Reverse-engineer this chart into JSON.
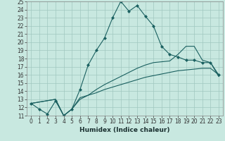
{
  "title": "",
  "xlabel": "Humidex (Indice chaleur)",
  "bg_color": "#c8e8e0",
  "line_color": "#1a6060",
  "grid_color": "#a0c8c0",
  "xlim": [
    -0.5,
    23.5
  ],
  "ylim": [
    11,
    25
  ],
  "xticks": [
    0,
    1,
    2,
    3,
    4,
    5,
    6,
    7,
    8,
    9,
    10,
    11,
    12,
    13,
    14,
    15,
    16,
    17,
    18,
    19,
    20,
    21,
    22,
    23
  ],
  "yticks": [
    11,
    12,
    13,
    14,
    15,
    16,
    17,
    18,
    19,
    20,
    21,
    22,
    23,
    24,
    25
  ],
  "line1_x": [
    0,
    1,
    2,
    3,
    4,
    5,
    6,
    7,
    8,
    9,
    10,
    11,
    12,
    13,
    14,
    15,
    16,
    17,
    18,
    19,
    20,
    21,
    22,
    23
  ],
  "line1_y": [
    12.5,
    11.8,
    11.2,
    12.8,
    11.0,
    11.8,
    14.2,
    17.2,
    19.0,
    20.5,
    23.0,
    25.0,
    23.8,
    24.5,
    23.2,
    22.0,
    19.5,
    18.5,
    18.2,
    17.8,
    17.8,
    17.5,
    17.5,
    16.0
  ],
  "line2_x": [
    0,
    3,
    4,
    5,
    6,
    7,
    8,
    9,
    10,
    11,
    12,
    13,
    14,
    15,
    16,
    17,
    18,
    19,
    20,
    21,
    22,
    23
  ],
  "line2_y": [
    12.5,
    13.0,
    11.0,
    11.8,
    13.0,
    13.5,
    13.8,
    14.2,
    14.5,
    14.8,
    15.1,
    15.4,
    15.7,
    15.9,
    16.1,
    16.3,
    16.5,
    16.6,
    16.7,
    16.8,
    16.8,
    16.0
  ],
  "line3_x": [
    0,
    3,
    4,
    5,
    6,
    7,
    8,
    9,
    10,
    11,
    12,
    13,
    14,
    15,
    16,
    17,
    18,
    19,
    20,
    21,
    22,
    23
  ],
  "line3_y": [
    12.5,
    13.0,
    11.0,
    11.8,
    13.2,
    13.5,
    14.2,
    14.8,
    15.3,
    15.8,
    16.3,
    16.8,
    17.2,
    17.5,
    17.6,
    17.7,
    18.5,
    19.5,
    19.5,
    17.8,
    17.5,
    15.8
  ],
  "tick_fontsize": 5.5,
  "xlabel_fontsize": 6.5,
  "marker": "D",
  "markersize": 2.0
}
